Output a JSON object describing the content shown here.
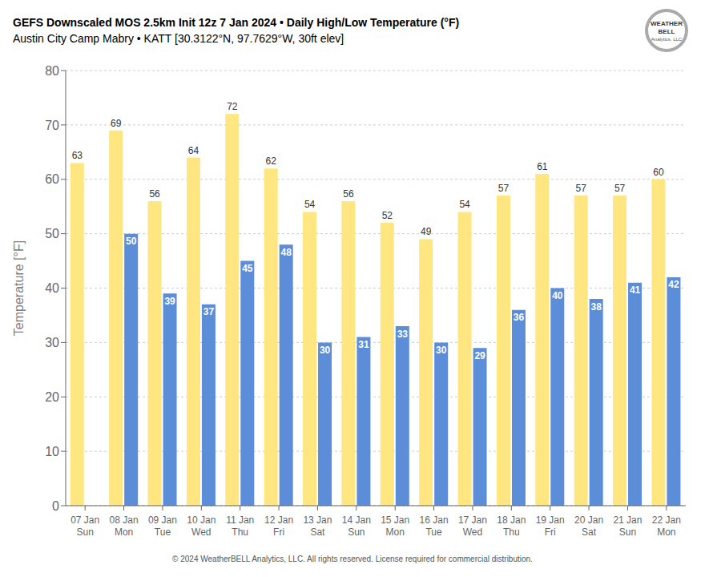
{
  "chart_data": {
    "type": "bar",
    "title": "GEFS Downscaled MOS 2.5km Init 12z 7 Jan 2024 • Daily High/Low Temperature (°F)",
    "subtitle": "Austin City Camp Mabry • KATT [30.3122°N, 97.7629°W, 30ft elev]",
    "categories": [
      "07 Jan\nSun",
      "08 Jan\nMon",
      "09 Jan\nTue",
      "10 Jan\nWed",
      "11 Jan\nThu",
      "12 Jan\nFri",
      "13 Jan\nSat",
      "14 Jan\nSun",
      "15 Jan\nMon",
      "16 Jan\nTue",
      "17 Jan\nWed",
      "18 Jan\nThu",
      "19 Jan\nFri",
      "20 Jan\nSat",
      "21 Jan\nSun",
      "22 Jan\nMon"
    ],
    "series": [
      {
        "color": "#FFE680",
        "values": [
          63,
          69,
          56,
          64,
          72,
          62,
          54,
          56,
          52,
          49,
          54,
          57,
          61,
          57,
          57,
          60
        ]
      },
      {
        "color": "#5B8DD9",
        "values": [
          null,
          50,
          39,
          37,
          45,
          48,
          30,
          31,
          33,
          30,
          29,
          36,
          40,
          38,
          41,
          42
        ]
      }
    ],
    "ylabel": "Temperature [°F]",
    "ylim": [
      0,
      80
    ],
    "yticks": [
      0,
      10,
      20,
      30,
      40,
      50,
      60,
      70,
      80
    ],
    "grid": true,
    "data_labels": true,
    "annotations": [
      "WEATHER",
      "BELL",
      "Analytics, LLC",
      "© 2024 WeatherBELL Analytics, LLC. All rights reserved. License required for commercial distribution."
    ]
  }
}
